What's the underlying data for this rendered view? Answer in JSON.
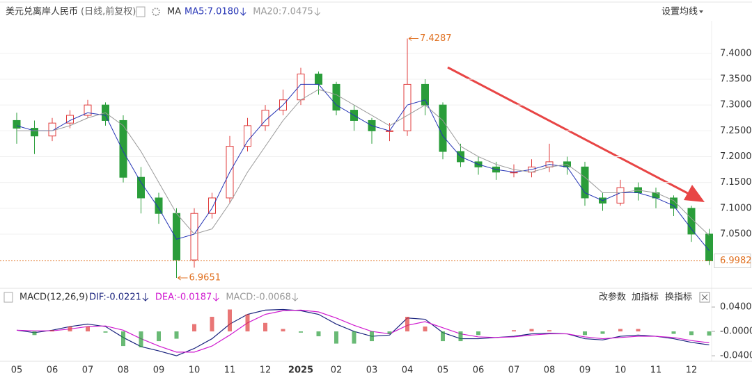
{
  "chart_data": [
    {
      "type": "candlestick",
      "title": "美元兑离岸人民币",
      "subtitle": "(日线,前复权)",
      "indicator": "MA",
      "button": "设置均线",
      "categories": [
        "05",
        null,
        "06",
        null,
        "07",
        null,
        "08",
        null,
        "09",
        null,
        "10",
        null,
        "11",
        null,
        "12",
        null,
        "2025",
        null,
        "02",
        null,
        "03",
        null,
        "04",
        null,
        "05",
        null,
        "06",
        null,
        "07",
        null,
        "08",
        null,
        "09",
        null,
        "10",
        null,
        "11",
        null,
        "12",
        null
      ],
      "open": [
        7.27,
        7.255,
        7.24,
        7.265,
        7.28,
        7.3,
        7.27,
        7.16,
        7.12,
        7.09,
        7.0,
        7.09,
        7.12,
        7.22,
        7.26,
        7.29,
        7.31,
        7.36,
        7.34,
        7.29,
        7.27,
        7.25,
        7.25,
        7.34,
        7.3,
        7.21,
        7.19,
        7.18,
        7.17,
        7.17,
        7.18,
        7.19,
        7.18,
        7.12,
        7.11,
        7.14,
        7.13,
        7.12,
        7.1,
        7.05
      ],
      "high": [
        7.285,
        7.27,
        7.275,
        7.29,
        7.31,
        7.305,
        7.28,
        7.18,
        7.13,
        7.1,
        7.1,
        7.13,
        7.24,
        7.275,
        7.3,
        7.33,
        7.372,
        7.365,
        7.345,
        7.3,
        7.275,
        7.265,
        7.4287,
        7.35,
        7.305,
        7.225,
        7.2,
        7.19,
        7.185,
        7.195,
        7.225,
        7.2,
        7.19,
        7.13,
        7.155,
        7.15,
        7.14,
        7.125,
        7.105,
        7.06
      ],
      "low": [
        7.225,
        7.205,
        7.23,
        7.255,
        7.275,
        7.26,
        7.15,
        7.09,
        7.07,
        6.9651,
        6.985,
        7.08,
        7.11,
        7.21,
        7.25,
        7.28,
        7.3,
        7.32,
        7.28,
        7.25,
        7.225,
        7.23,
        7.24,
        7.28,
        7.195,
        7.18,
        7.165,
        7.155,
        7.16,
        7.16,
        7.17,
        7.165,
        7.105,
        7.095,
        7.105,
        7.115,
        7.1,
        7.085,
        7.035,
        6.99
      ],
      "close": [
        7.255,
        7.24,
        7.265,
        7.28,
        7.3,
        7.27,
        7.16,
        7.12,
        7.09,
        7.0,
        7.09,
        7.12,
        7.22,
        7.26,
        7.29,
        7.31,
        7.36,
        7.34,
        7.29,
        7.27,
        7.25,
        7.25,
        7.34,
        7.3,
        7.21,
        7.19,
        7.18,
        7.17,
        7.17,
        7.18,
        7.19,
        7.18,
        7.12,
        7.11,
        7.14,
        7.13,
        7.12,
        7.1,
        7.05,
        6.9982
      ],
      "up_color": "#e03c3c",
      "down_color": "#2a9d3a",
      "series": [
        {
          "name": "MA5:7.0180",
          "color": "#2433b5",
          "values": [
            7.26,
            7.25,
            7.25,
            7.27,
            7.285,
            7.28,
            7.21,
            7.15,
            7.1,
            7.04,
            7.05,
            7.1,
            7.17,
            7.23,
            7.27,
            7.3,
            7.34,
            7.34,
            7.3,
            7.28,
            7.26,
            7.25,
            7.3,
            7.31,
            7.24,
            7.2,
            7.185,
            7.175,
            7.17,
            7.175,
            7.185,
            7.18,
            7.13,
            7.115,
            7.13,
            7.13,
            7.12,
            7.105,
            7.06,
            7.018
          ]
        },
        {
          "name": "MA20:7.0475",
          "color": "#9a9a9a",
          "values": [
            7.25,
            7.25,
            7.25,
            7.26,
            7.275,
            7.285,
            7.26,
            7.21,
            7.15,
            7.09,
            7.05,
            7.06,
            7.11,
            7.17,
            7.22,
            7.27,
            7.31,
            7.33,
            7.32,
            7.3,
            7.28,
            7.26,
            7.28,
            7.3,
            7.27,
            7.22,
            7.2,
            7.185,
            7.175,
            7.17,
            7.18,
            7.185,
            7.16,
            7.13,
            7.13,
            7.135,
            7.13,
            7.115,
            7.08,
            7.0475
          ]
        }
      ],
      "ylim": [
        6.945,
        7.463
      ],
      "yticks": [
        {
          "value": 7.05,
          "label": "7.0500"
        },
        {
          "value": 7.1,
          "label": "7.1000"
        },
        {
          "value": 7.15,
          "label": "7.1500"
        },
        {
          "value": 7.2,
          "label": "7.2000"
        },
        {
          "value": 7.25,
          "label": "7.2500"
        },
        {
          "value": 7.3,
          "label": "7.3000"
        },
        {
          "value": 7.35,
          "label": "7.3500"
        },
        {
          "value": 7.4,
          "label": "7.4000"
        }
      ],
      "grid": true
    },
    {
      "type": "macd",
      "title": "MACD(12,26,9)",
      "buttons": [
        "改参数",
        "加指标",
        "换指标"
      ],
      "series": [
        {
          "name": "DIF:-0.0221",
          "type": "line",
          "color": "#1a237e",
          "values": [
            0.002,
            -0.002,
            0.002,
            0.008,
            0.012,
            0.008,
            -0.01,
            -0.025,
            -0.032,
            -0.04,
            -0.028,
            -0.012,
            0.012,
            0.028,
            0.035,
            0.036,
            0.034,
            0.028,
            0.012,
            0.0,
            -0.008,
            -0.006,
            0.022,
            0.02,
            -0.002,
            -0.012,
            -0.012,
            -0.01,
            -0.008,
            -0.004,
            -0.003,
            -0.004,
            -0.012,
            -0.014,
            -0.008,
            -0.006,
            -0.008,
            -0.012,
            -0.018,
            -0.0221
          ]
        },
        {
          "name": "DEA:-0.0187",
          "type": "line",
          "color": "#d01ad0",
          "values": [
            0.002,
            0.001,
            0.001,
            0.004,
            0.008,
            0.009,
            0.002,
            -0.012,
            -0.024,
            -0.034,
            -0.034,
            -0.024,
            -0.006,
            0.014,
            0.028,
            0.034,
            0.035,
            0.032,
            0.022,
            0.01,
            0.0,
            -0.004,
            0.01,
            0.016,
            0.006,
            -0.004,
            -0.009,
            -0.01,
            -0.009,
            -0.006,
            -0.004,
            -0.004,
            -0.009,
            -0.012,
            -0.01,
            -0.008,
            -0.008,
            -0.01,
            -0.015,
            -0.0187
          ]
        },
        {
          "name": "MACD:-0.0068",
          "type": "bar",
          "color": "#999999",
          "up_color": "#e03c3c",
          "down_color": "#2a9d3a",
          "values": [
            0.0,
            -0.006,
            0.002,
            0.008,
            0.008,
            -0.002,
            -0.024,
            -0.026,
            -0.016,
            -0.012,
            0.012,
            0.024,
            0.036,
            0.028,
            0.014,
            0.004,
            -0.002,
            -0.008,
            -0.02,
            -0.02,
            -0.016,
            -0.004,
            0.024,
            0.008,
            -0.016,
            -0.016,
            -0.006,
            0.0,
            0.002,
            0.004,
            0.002,
            0.0,
            -0.006,
            -0.004,
            0.004,
            0.004,
            0.0,
            -0.004,
            -0.006,
            -0.0068
          ]
        }
      ],
      "ylim": [
        -0.049,
        0.0457
      ],
      "yticks": [
        {
          "value": 0.04,
          "label": "0.0400"
        },
        {
          "value": 0,
          "label": "-0.0000"
        },
        {
          "value": -0.04,
          "label": "-0.0400"
        }
      ]
    }
  ]
}
